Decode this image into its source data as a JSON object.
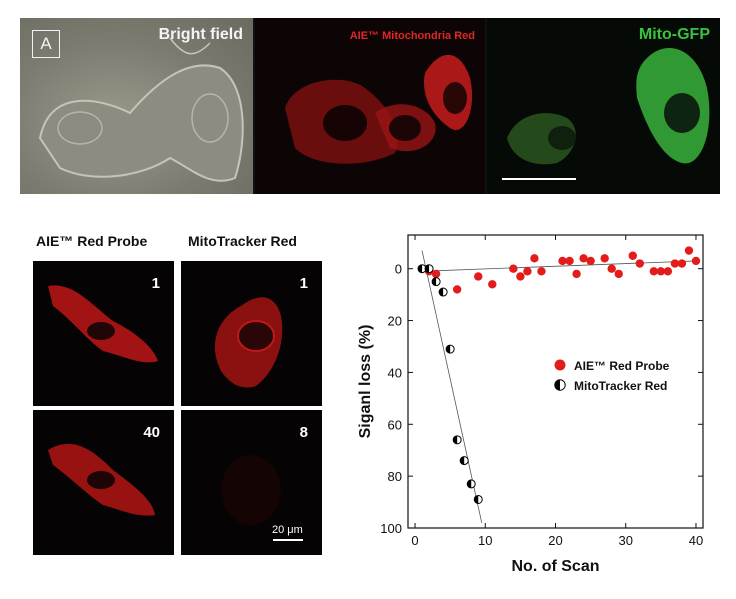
{
  "panel_a": {
    "letter": "A",
    "titles": {
      "bright_field": "Bright field",
      "aie_mito": "AIE™ Mitochondria Red",
      "mito_gfp": "Mito-GFP"
    }
  },
  "micrographs": {
    "col_headers": [
      "AIE™ Red Probe",
      "MitoTracker Red"
    ],
    "tiles": [
      {
        "scan": "1"
      },
      {
        "scan": "1"
      },
      {
        "scan": "40"
      },
      {
        "scan": "8"
      }
    ],
    "scale_label": "20 μm"
  },
  "colors": {
    "aie_red": "#e31b1b",
    "mito_green": "#35c43c",
    "axis": "#111111"
  },
  "chart_data": {
    "type": "scatter",
    "xlabel": "No. of Scan",
    "ylabel": "Siganl loss (%)",
    "xlim": [
      -1,
      41
    ],
    "ylim": [
      100,
      -13
    ],
    "y_inverted": true,
    "xticks": [
      0,
      10,
      20,
      30,
      40
    ],
    "yticks": [
      0,
      20,
      40,
      60,
      80,
      100
    ],
    "legend_position": "right",
    "series": [
      {
        "name": "AIE™ Red Probe",
        "marker": "filled-circle",
        "color": "#e31b1b",
        "points": [
          [
            1,
            0
          ],
          [
            2,
            1
          ],
          [
            3,
            2
          ],
          [
            6,
            8
          ],
          [
            9,
            3
          ],
          [
            11,
            6
          ],
          [
            14,
            0
          ],
          [
            15,
            3
          ],
          [
            16,
            1
          ],
          [
            17,
            -4
          ],
          [
            18,
            1
          ],
          [
            21,
            -3
          ],
          [
            22,
            -3
          ],
          [
            23,
            2
          ],
          [
            24,
            -4
          ],
          [
            25,
            -3
          ],
          [
            27,
            -4
          ],
          [
            28,
            0
          ],
          [
            29,
            2
          ],
          [
            31,
            -5
          ],
          [
            32,
            -2
          ],
          [
            34,
            1
          ],
          [
            35,
            1
          ],
          [
            36,
            1
          ],
          [
            37,
            -2
          ],
          [
            38,
            -2
          ],
          [
            39,
            -7
          ],
          [
            40,
            -3
          ]
        ]
      },
      {
        "name": "MitoTracker Red",
        "marker": "half-filled-circle",
        "color": "#000000",
        "points": [
          [
            1,
            0
          ],
          [
            2,
            0
          ],
          [
            3,
            5
          ],
          [
            4,
            9
          ],
          [
            5,
            31
          ],
          [
            6,
            66
          ],
          [
            7,
            74
          ],
          [
            8,
            83
          ],
          [
            9,
            89
          ]
        ]
      }
    ],
    "fit_lines": [
      {
        "series": "AIE™ Red Probe",
        "from": [
          1,
          1
        ],
        "to": [
          40,
          -3
        ]
      },
      {
        "series": "MitoTracker Red",
        "from": [
          1,
          -7
        ],
        "to": [
          9.5,
          98
        ]
      }
    ]
  }
}
